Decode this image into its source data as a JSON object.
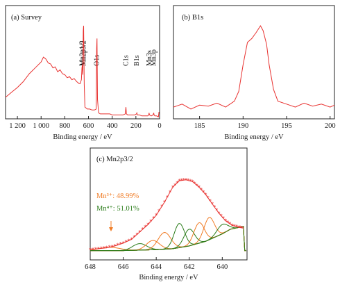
{
  "chart_data": [
    {
      "type": "line",
      "panel_label": "(a) Survey",
      "xlabel": "Binding energy / eV",
      "xlim": [
        1300,
        0
      ],
      "x_ticks": [
        "1 200",
        "1 000",
        "800",
        "600",
        "400",
        "200",
        "0"
      ],
      "x_tick_values": [
        1200,
        1000,
        800,
        600,
        400,
        200,
        0
      ],
      "annotations": [
        {
          "text": "Mn2p1/2",
          "x": 652
        },
        {
          "text": "Mn2p3/2",
          "x": 641
        },
        {
          "text": "O1s",
          "x": 530
        },
        {
          "text": "C1s",
          "x": 284
        },
        {
          "text": "B1s",
          "x": 192
        },
        {
          "text": "Mn3s",
          "x": 89
        },
        {
          "text": "Mn3p",
          "x": 49
        }
      ],
      "series": [
        {
          "color": "#e8312f",
          "x": [
            1300,
            1250,
            1200,
            1150,
            1100,
            1050,
            1000,
            980,
            960,
            940,
            920,
            900,
            880,
            860,
            840,
            820,
            800,
            780,
            760,
            740,
            720,
            700,
            680,
            670,
            660,
            655,
            652,
            648,
            644,
            641,
            636,
            630,
            610,
            590,
            570,
            550,
            535,
            531,
            528,
            524,
            515,
            500,
            480,
            450,
            420,
            400,
            370,
            340,
            310,
            290,
            286,
            284,
            280,
            270,
            240,
            210,
            195,
            192,
            188,
            170,
            150,
            120,
            100,
            92,
            89,
            85,
            70,
            55,
            50,
            46,
            40,
            25,
            10,
            5
          ],
          "y": [
            0.22,
            0.27,
            0.32,
            0.38,
            0.46,
            0.52,
            0.58,
            0.63,
            0.61,
            0.57,
            0.56,
            0.52,
            0.53,
            0.48,
            0.5,
            0.46,
            0.45,
            0.42,
            0.43,
            0.4,
            0.41,
            0.38,
            0.36,
            0.36,
            0.4,
            0.52,
            0.55,
            0.45,
            0.9,
            0.95,
            0.35,
            0.12,
            0.1,
            0.1,
            0.09,
            0.09,
            0.1,
            0.72,
            0.82,
            0.2,
            0.06,
            0.05,
            0.05,
            0.05,
            0.05,
            0.04,
            0.04,
            0.04,
            0.04,
            0.05,
            0.1,
            0.12,
            0.05,
            0.04,
            0.04,
            0.04,
            0.05,
            0.06,
            0.04,
            0.04,
            0.03,
            0.03,
            0.03,
            0.04,
            0.06,
            0.04,
            0.03,
            0.04,
            0.06,
            0.04,
            0.03,
            0.03,
            0.02,
            0.07
          ]
        }
      ]
    },
    {
      "type": "line",
      "panel_label": "(b) B1s",
      "xlabel": "Binding energy / eV",
      "xlim": [
        182,
        200.5
      ],
      "x_ticks": [
        "185",
        "190",
        "195",
        "200"
      ],
      "x_tick_values": [
        185,
        190,
        195,
        200
      ],
      "series": [
        {
          "color": "#e8312f",
          "x": [
            182,
            183,
            184,
            185,
            186,
            187,
            188,
            189,
            189.5,
            190,
            190.5,
            191,
            191.5,
            192,
            192.3,
            192.7,
            193,
            193.5,
            194,
            195,
            196,
            197,
            198,
            199,
            200,
            200.5
          ],
          "y": [
            0.12,
            0.15,
            0.1,
            0.14,
            0.13,
            0.16,
            0.12,
            0.18,
            0.28,
            0.55,
            0.78,
            0.82,
            0.88,
            0.95,
            0.9,
            0.76,
            0.55,
            0.3,
            0.18,
            0.15,
            0.12,
            0.16,
            0.13,
            0.15,
            0.12,
            0.14
          ]
        }
      ]
    },
    {
      "type": "line",
      "panel_label": "(c) Mn2p3/2",
      "xlabel": "Binding energy / eV",
      "xlim": [
        648,
        638.5
      ],
      "x_ticks": [
        "648",
        "646",
        "644",
        "642",
        "640"
      ],
      "x_tick_values": [
        648,
        646,
        644,
        642,
        640
      ],
      "legend": [
        {
          "text": "Mn³⁺: 48.99%",
          "color": "#f07b24"
        },
        {
          "text": "Mn⁴⁺: 51.01%",
          "color": "#2c7d1b"
        }
      ],
      "background": {
        "color": "#2c7d1b",
        "x": [
          648,
          646,
          644,
          643,
          642,
          641,
          640,
          639.5,
          638.7
        ],
        "y": [
          0.1,
          0.1,
          0.11,
          0.12,
          0.15,
          0.2,
          0.28,
          0.33,
          0.36
        ]
      },
      "components": [
        {
          "center": 646.8,
          "height": 0.035,
          "width": 0.9,
          "color": "#f07b24"
        },
        {
          "center": 645.0,
          "height": 0.07,
          "width": 0.6,
          "color": "#2c7d1b"
        },
        {
          "center": 644.2,
          "height": 0.1,
          "width": 0.55,
          "color": "#f07b24"
        },
        {
          "center": 643.5,
          "height": 0.18,
          "width": 0.55,
          "color": "#f07b24"
        },
        {
          "center": 642.6,
          "height": 0.26,
          "width": 0.45,
          "color": "#2c7d1b"
        },
        {
          "center": 642.0,
          "height": 0.18,
          "width": 0.45,
          "color": "#2c7d1b"
        },
        {
          "center": 641.4,
          "height": 0.22,
          "width": 0.45,
          "color": "#f07b24"
        },
        {
          "center": 640.8,
          "height": 0.24,
          "width": 0.45,
          "color": "#f07b24"
        },
        {
          "center": 640.0,
          "height": 0.1,
          "width": 0.45,
          "color": "#2c7d1b"
        }
      ],
      "series": [
        {
          "name": "",
          "color": "#e8312f",
          "x": [
            648,
            647.5,
            647,
            646.5,
            646,
            645.5,
            645,
            644.5,
            644,
            643.5,
            643,
            642.6,
            642.2,
            641.8,
            641.4,
            641,
            640.6,
            640.2,
            639.8,
            639.4,
            639,
            638.7
          ],
          "y": [
            0.11,
            0.12,
            0.13,
            0.15,
            0.18,
            0.22,
            0.3,
            0.38,
            0.48,
            0.62,
            0.78,
            0.85,
            0.86,
            0.84,
            0.78,
            0.7,
            0.6,
            0.5,
            0.42,
            0.37,
            0.35,
            0.34
          ]
        }
      ]
    }
  ]
}
